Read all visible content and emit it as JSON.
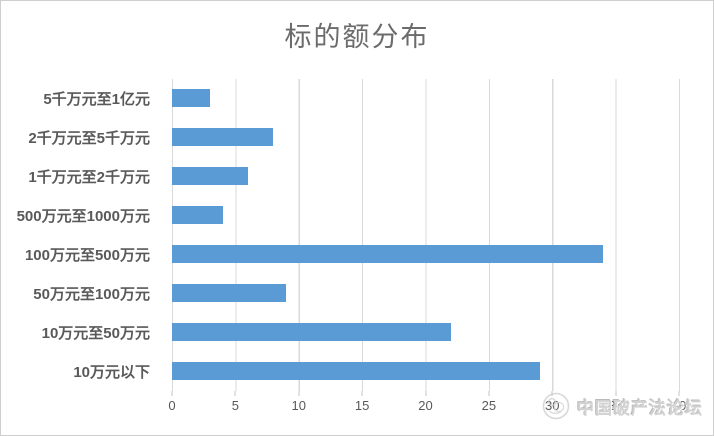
{
  "title": "标的额分布",
  "chart_data": {
    "type": "bar",
    "orientation": "horizontal",
    "title": "标的额分布",
    "categories": [
      "5千万元至1亿元",
      "2千万元至5千万元",
      "1千万元至2千万元",
      "500万元至1000万元",
      "100万元至500万元",
      "50万元至100万元",
      "10万元至50万元",
      "10万元以下"
    ],
    "values": [
      3,
      8,
      6,
      4,
      34,
      9,
      22,
      29
    ],
    "categories_order": "top-to-bottom",
    "xlabel": "",
    "ylabel": "",
    "xlim": [
      0,
      40
    ],
    "x_ticks": [
      "0",
      "5",
      "10",
      "15",
      "20",
      "25",
      "30",
      "35",
      "40"
    ],
    "grid": true,
    "legend": "none",
    "bar_color": "#5B9BD5",
    "gridline_color": "#D9D9D9",
    "text_color": "#595959",
    "title_color": "#6B6B6B"
  },
  "watermark": {
    "text": "中国破产法论坛",
    "logo": "circular-emblem"
  }
}
